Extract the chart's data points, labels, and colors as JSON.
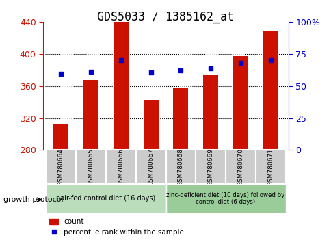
{
  "title": "GDS5033 / 1385162_at",
  "samples": [
    "GSM780664",
    "GSM780665",
    "GSM780666",
    "GSM780667",
    "GSM780668",
    "GSM780669",
    "GSM780670",
    "GSM780671"
  ],
  "counts": [
    312,
    367,
    440,
    342,
    358,
    373,
    397,
    428
  ],
  "percentiles": [
    375,
    378,
    392,
    377,
    379,
    382,
    389,
    392
  ],
  "y_min": 280,
  "y_max": 440,
  "y_ticks": [
    280,
    320,
    360,
    400,
    440
  ],
  "y2_ticks": [
    0,
    25,
    50,
    75,
    100
  ],
  "y2_tick_positions": [
    280,
    320,
    360,
    400,
    440
  ],
  "bar_color": "#cc1100",
  "point_color": "#0000cc",
  "group1_label": "pair-fed control diet (16 days)",
  "group2_label": "zinc-deficient diet (10 days) followed by\ncontrol diet (6 days)",
  "growth_protocol_label": "growth protocol",
  "legend_count": "count",
  "legend_pct": "percentile rank within the sample",
  "bar_width": 0.5,
  "tick_color_left": "#cc1100",
  "tick_color_right": "#0000cc",
  "title_fontsize": 12,
  "group_bg1": "#bbddbb",
  "group_bg2": "#99cc99",
  "sample_box_bg": "#cccccc"
}
